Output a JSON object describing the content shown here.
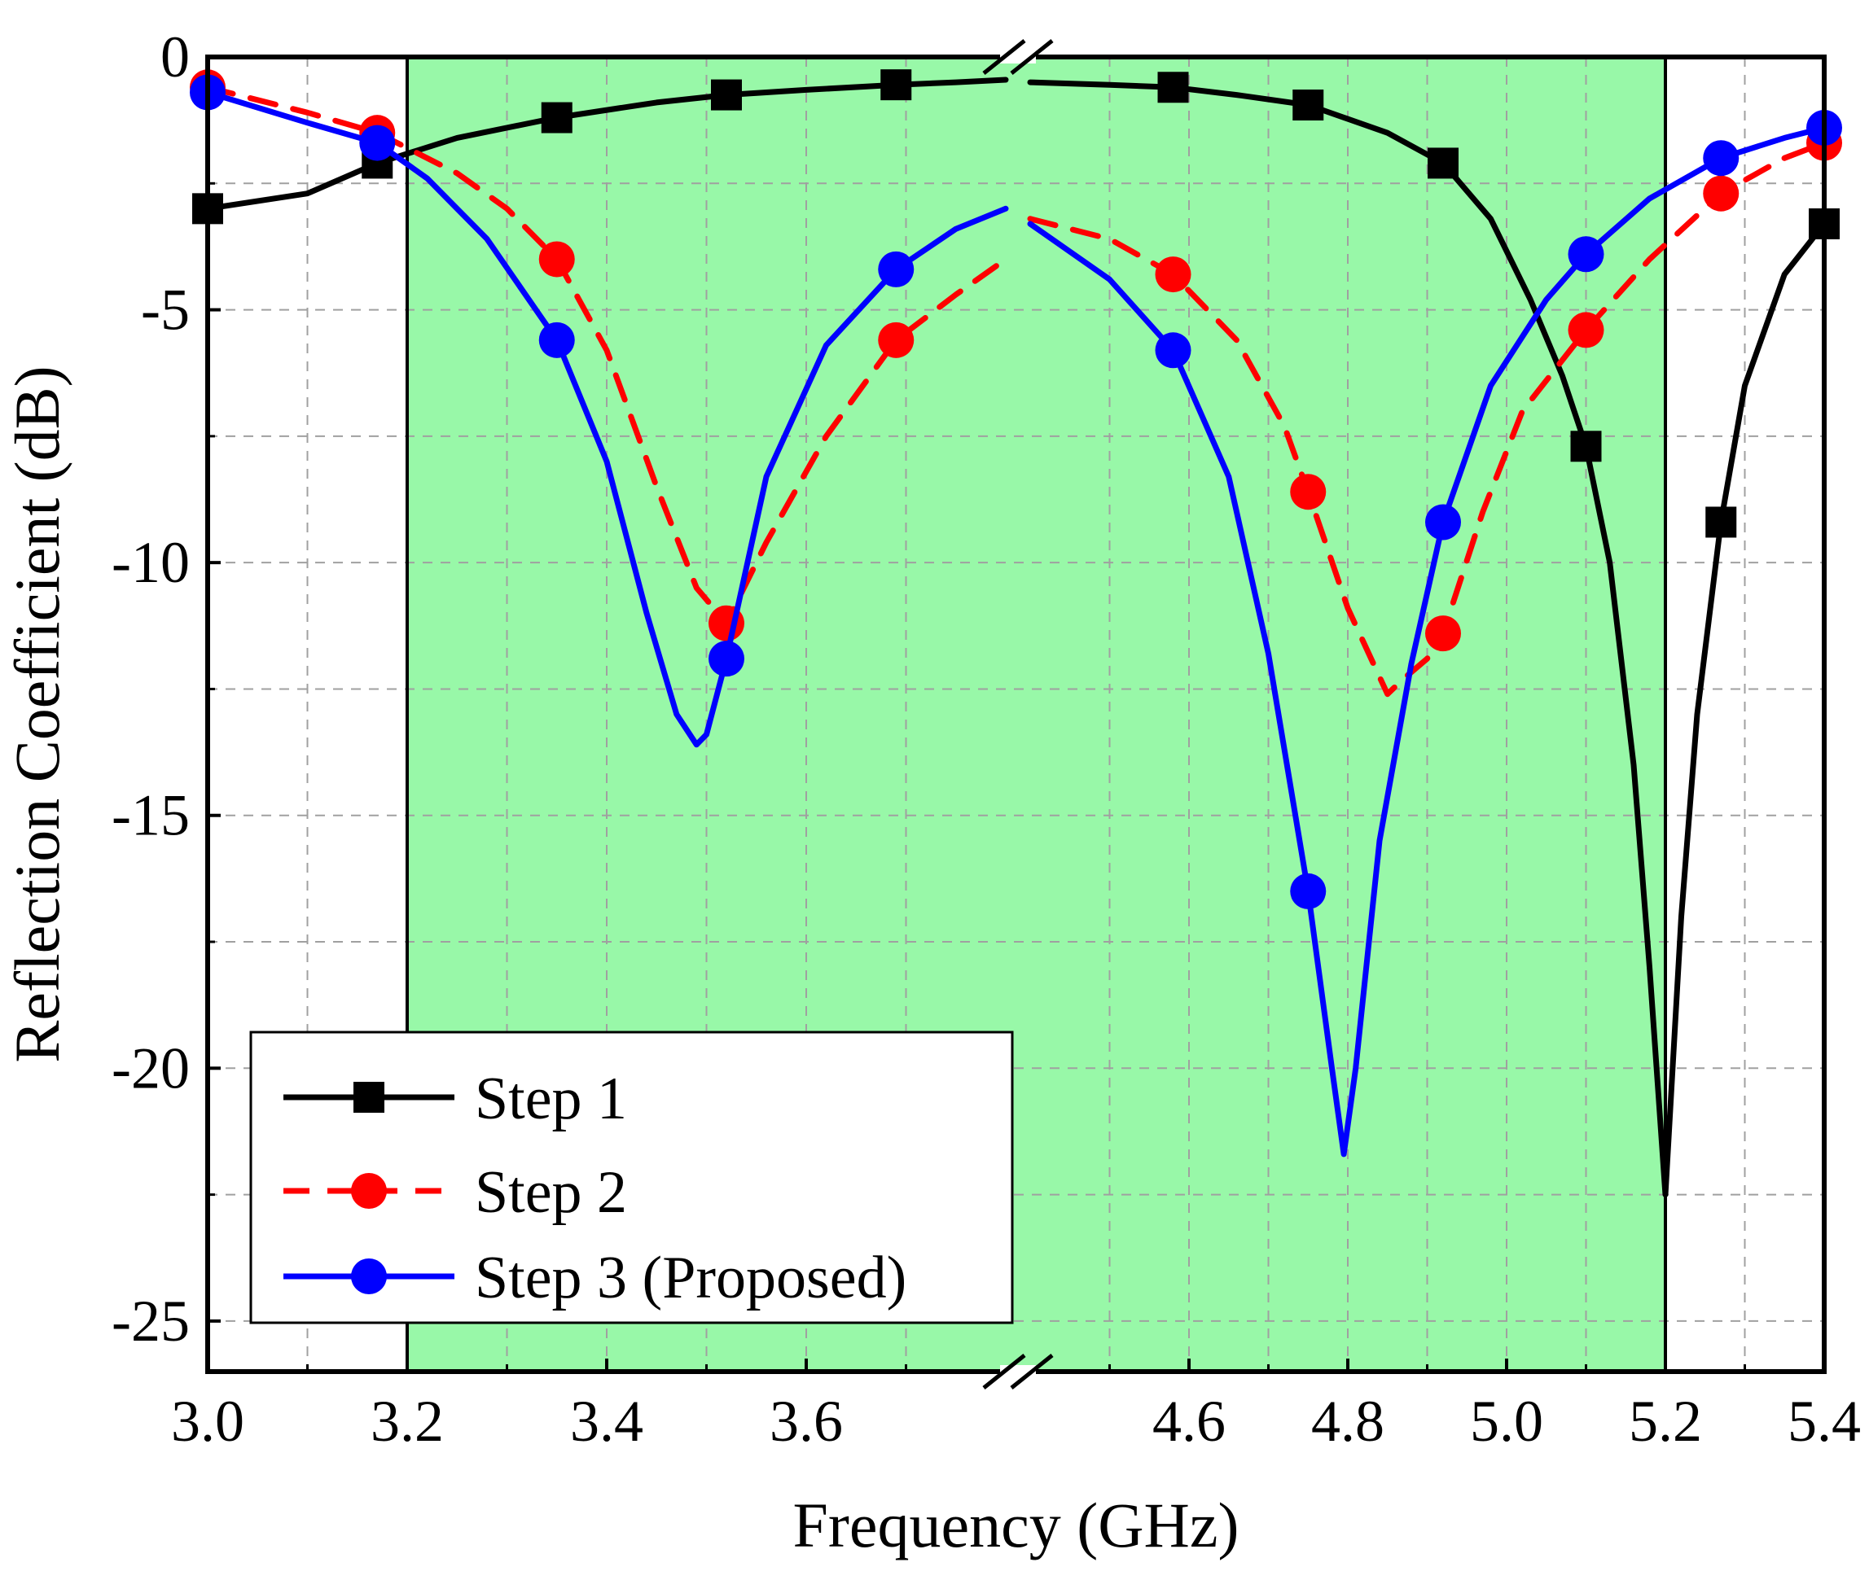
{
  "chart_data": {
    "type": "line",
    "title": "",
    "xlabel": "Frequency (GHz)",
    "ylabel": "Reflection Coefficient (dB)",
    "ylim": [
      -26,
      0
    ],
    "x_axis_break": {
      "from": 3.8,
      "to": 4.4
    },
    "x_segments": [
      [
        3.0,
        3.8
      ],
      [
        4.4,
        5.4
      ]
    ],
    "x_tick_labels": [
      "3.0",
      "3.2",
      "3.4",
      "3.6",
      "4.6",
      "4.8",
      "5.0",
      "5.2",
      "5.4"
    ],
    "x_tick_values": [
      3.0,
      3.2,
      3.4,
      3.6,
      4.6,
      4.8,
      5.0,
      5.2,
      5.4
    ],
    "y_tick_labels": [
      "0",
      "-5",
      "-10",
      "-15",
      "-20",
      "-25"
    ],
    "y_tick_values": [
      0,
      -5,
      -10,
      -15,
      -20,
      -25
    ],
    "grid": true,
    "highlight_band": {
      "from": 3.2,
      "to": 5.2,
      "color": "#98F8A8"
    },
    "legend_position": "bottom-left",
    "series": [
      {
        "name": "Step 1",
        "color": "#000000",
        "dash": "solid",
        "marker": "square",
        "x": [
          3.0,
          3.1,
          3.17,
          3.25,
          3.35,
          3.45,
          3.52,
          3.6,
          3.69,
          3.75,
          3.8,
          4.4,
          4.5,
          4.58,
          4.66,
          4.75,
          4.85,
          4.92,
          4.98,
          5.03,
          5.07,
          5.1,
          5.13,
          5.16,
          5.18,
          5.2,
          5.22,
          5.24,
          5.27,
          5.3,
          5.35,
          5.4
        ],
        "y": [
          -3.0,
          -2.7,
          -2.1,
          -1.6,
          -1.2,
          -0.9,
          -0.75,
          -0.65,
          -0.55,
          -0.5,
          -0.45,
          -0.5,
          -0.55,
          -0.6,
          -0.75,
          -0.95,
          -1.5,
          -2.1,
          -3.2,
          -4.8,
          -6.3,
          -7.7,
          -10.0,
          -14.0,
          -18.0,
          -22.5,
          -17.0,
          -13.0,
          -9.2,
          -6.5,
          -4.3,
          -3.3
        ],
        "markers_x": [
          3.0,
          3.17,
          3.35,
          3.52,
          3.69,
          4.58,
          4.75,
          4.92,
          5.1,
          5.27,
          5.4
        ],
        "markers_y": [
          -3.0,
          -2.1,
          -1.2,
          -0.75,
          -0.55,
          -0.6,
          -0.95,
          -2.1,
          -7.7,
          -9.2,
          -3.3
        ]
      },
      {
        "name": "Step 2",
        "color": "#FF0000",
        "dash": "dashed",
        "marker": "circle",
        "x": [
          3.0,
          3.1,
          3.17,
          3.25,
          3.3,
          3.35,
          3.4,
          3.45,
          3.49,
          3.52,
          3.56,
          3.62,
          3.69,
          3.75,
          3.8,
          4.4,
          4.5,
          4.58,
          4.66,
          4.72,
          4.75,
          4.8,
          4.85,
          4.87,
          4.9,
          4.92,
          4.97,
          5.02,
          5.1,
          5.18,
          5.27,
          5.35,
          5.4
        ],
        "y": [
          -0.6,
          -1.1,
          -1.5,
          -2.3,
          -3.0,
          -4.0,
          -5.8,
          -8.5,
          -10.5,
          -11.2,
          -9.6,
          -7.5,
          -5.6,
          -4.7,
          -4.0,
          -3.2,
          -3.6,
          -4.3,
          -5.6,
          -7.3,
          -8.6,
          -10.9,
          -12.6,
          -12.3,
          -11.9,
          -11.4,
          -9.0,
          -7.0,
          -5.4,
          -4.0,
          -2.7,
          -2.0,
          -1.7
        ],
        "markers_x": [
          3.0,
          3.17,
          3.35,
          3.52,
          3.69,
          4.58,
          4.75,
          4.92,
          5.1,
          5.27,
          5.4
        ],
        "markers_y": [
          -0.6,
          -1.5,
          -4.0,
          -11.2,
          -5.6,
          -4.3,
          -8.6,
          -11.4,
          -5.4,
          -2.7,
          -1.7
        ]
      },
      {
        "name": "Step 3 (Proposed)",
        "color": "#0000FF",
        "dash": "solid",
        "marker": "circle",
        "x": [
          3.0,
          3.1,
          3.17,
          3.22,
          3.28,
          3.35,
          3.4,
          3.44,
          3.47,
          3.49,
          3.5,
          3.52,
          3.56,
          3.62,
          3.69,
          3.75,
          3.8,
          4.4,
          4.5,
          4.58,
          4.65,
          4.7,
          4.75,
          4.78,
          4.795,
          4.81,
          4.84,
          4.88,
          4.92,
          4.98,
          5.05,
          5.1,
          5.18,
          5.27,
          5.35,
          5.4
        ],
        "y": [
          -0.7,
          -1.3,
          -1.7,
          -2.4,
          -3.6,
          -5.6,
          -8.0,
          -11.0,
          -13.0,
          -13.6,
          -13.4,
          -11.9,
          -8.3,
          -5.7,
          -4.2,
          -3.4,
          -3.0,
          -3.3,
          -4.4,
          -5.8,
          -8.3,
          -11.8,
          -16.5,
          -20.0,
          -21.7,
          -20.0,
          -15.5,
          -12.0,
          -9.2,
          -6.5,
          -4.8,
          -3.9,
          -2.8,
          -2.0,
          -1.6,
          -1.4
        ],
        "markers_x": [
          3.0,
          3.17,
          3.35,
          3.52,
          3.69,
          4.58,
          4.75,
          4.92,
          5.1,
          5.27,
          5.4
        ],
        "markers_y": [
          -0.7,
          -1.7,
          -5.6,
          -11.9,
          -4.2,
          -5.8,
          -16.5,
          -9.2,
          -3.9,
          -2.0,
          -1.4
        ]
      }
    ]
  }
}
